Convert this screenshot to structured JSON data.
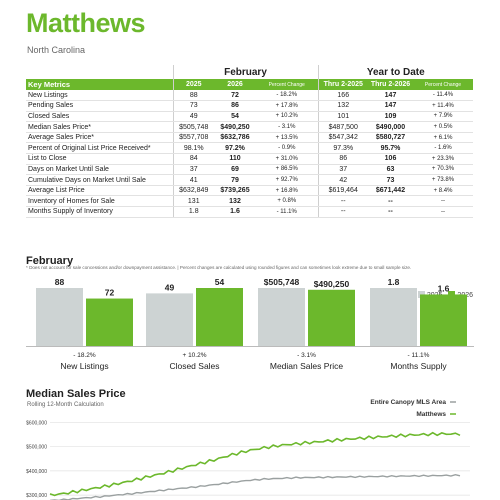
{
  "header": {
    "title": "Matthews",
    "subtitle": "North Carolina"
  },
  "table": {
    "group_month": "February",
    "group_ytd": "Year to Date",
    "columns": [
      "Key Metrics",
      "2025",
      "2026",
      "Percent Change",
      "Thru 2-2025",
      "Thru 2-2026",
      "Percent Change"
    ],
    "rows": [
      [
        "New Listings",
        "88",
        "72",
        "- 18.2%",
        "166",
        "147",
        "- 11.4%"
      ],
      [
        "Pending Sales",
        "73",
        "86",
        "+ 17.8%",
        "132",
        "147",
        "+ 11.4%"
      ],
      [
        "Closed Sales",
        "49",
        "54",
        "+ 10.2%",
        "101",
        "109",
        "+ 7.9%"
      ],
      [
        "Median Sales Price*",
        "$505,748",
        "$490,250",
        "- 3.1%",
        "$487,500",
        "$490,000",
        "+ 0.5%"
      ],
      [
        "Average Sales Price*",
        "$557,708",
        "$632,786",
        "+ 13.5%",
        "$547,342",
        "$580,727",
        "+ 6.1%"
      ],
      [
        "Percent of Original List Price Received*",
        "98.1%",
        "97.2%",
        "- 0.9%",
        "97.3%",
        "95.7%",
        "- 1.6%"
      ],
      [
        "List to Close",
        "84",
        "110",
        "+ 31.0%",
        "86",
        "106",
        "+ 23.3%"
      ],
      [
        "Days on Market Until Sale",
        "37",
        "69",
        "+ 86.5%",
        "37",
        "63",
        "+ 70.3%"
      ],
      [
        "Cumulative Days on Market Until Sale",
        "41",
        "79",
        "+ 92.7%",
        "42",
        "73",
        "+ 73.8%"
      ],
      [
        "Average List Price",
        "$632,849",
        "$739,265",
        "+ 16.8%",
        "$619,464",
        "$671,442",
        "+ 8.4%"
      ],
      [
        "Inventory of Homes for Sale",
        "131",
        "132",
        "+ 0.8%",
        "--",
        "--",
        "--"
      ],
      [
        "Months Supply of Inventory",
        "1.8",
        "1.6",
        "- 11.1%",
        "--",
        "--",
        "--"
      ]
    ],
    "footnote": "* Does not account for sale concessions and/or downpayment assistance.  |  Percent changes are calculated using rounded figures and can sometimes look extreme due to small sample size."
  },
  "bar_section": {
    "title": "February",
    "legend": [
      "2025",
      "2026"
    ],
    "colors": {
      "y2025": "#cdd3d3",
      "y2026": "#6cb82c"
    }
  },
  "chart_data": [
    {
      "type": "bar",
      "groups": [
        {
          "label": "New Listings",
          "change": "- 18.2%",
          "values": [
            88,
            72
          ],
          "labels": [
            "88",
            "72"
          ]
        },
        {
          "label": "Closed Sales",
          "change": "+ 10.2%",
          "values": [
            49,
            54
          ],
          "labels": [
            "49",
            "54"
          ]
        },
        {
          "label": "Median Sales Price",
          "change": "- 3.1%",
          "values": [
            505748,
            490250
          ],
          "labels": [
            "$505,748",
            "$490,250"
          ]
        },
        {
          "label": "Months Supply",
          "change": "- 11.1%",
          "values": [
            1.8,
            1.6
          ],
          "labels": [
            "1.8",
            "1.6"
          ]
        }
      ],
      "series": [
        {
          "name": "2025"
        },
        {
          "name": "2026"
        }
      ]
    },
    {
      "type": "line",
      "title": "Median Sales Price",
      "subtitle": "Rolling 12-Month Calculation",
      "y_ticks": [
        "$600,000",
        "$500,000",
        "$400,000",
        "$300,000"
      ],
      "ylim": [
        280000,
        610000
      ],
      "series": [
        {
          "name": "Entire Canopy MLS Area",
          "color": "#9aa0a0",
          "values": [
            278000,
            282000,
            288000,
            293000,
            300000,
            306000,
            314000,
            321000,
            328000,
            335000,
            343000,
            352000,
            360000,
            366000,
            369000,
            372000,
            373000,
            374000,
            375000,
            376000,
            377000,
            378000,
            379000,
            380000,
            381000,
            382000
          ]
        },
        {
          "name": "Matthews",
          "color": "#6cb82c",
          "values": [
            300000,
            308000,
            320000,
            332000,
            345000,
            360000,
            376000,
            392000,
            410000,
            428000,
            445000,
            465000,
            482000,
            495000,
            505000,
            512000,
            518000,
            524000,
            530000,
            535000,
            540000,
            544000,
            548000,
            551000,
            553000,
            552000
          ]
        }
      ]
    }
  ]
}
